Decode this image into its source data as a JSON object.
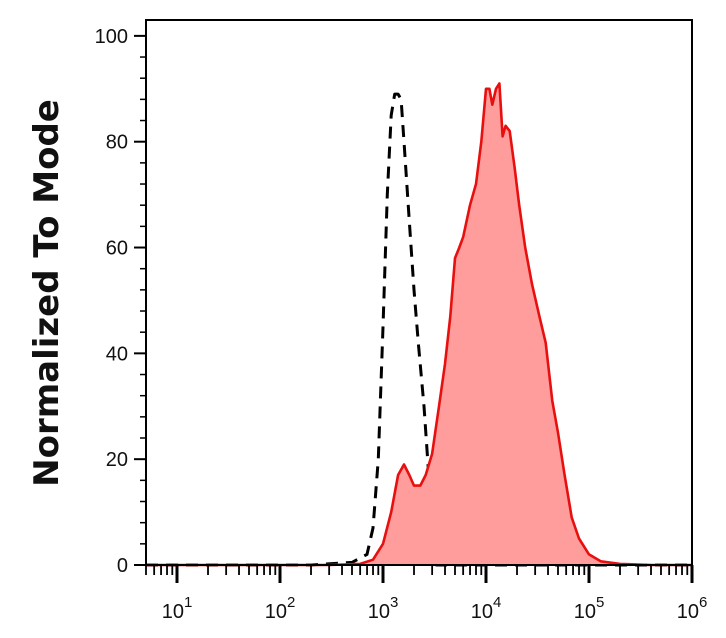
{
  "chart_data": {
    "type": "area",
    "title": "",
    "xlabel": "",
    "ylabel": "Normalized To Mode",
    "x_scale": "log",
    "xlim": [
      5,
      1000000
    ],
    "ylim": [
      0,
      103
    ],
    "y_ticks": [
      0,
      20,
      40,
      60,
      80,
      100
    ],
    "y_tick_labels": [
      "0",
      "20",
      "40",
      "60",
      "80",
      "100"
    ],
    "x_ticks": [
      {
        "value": 10,
        "base": "10",
        "exp": "1"
      },
      {
        "value": 100,
        "base": "10",
        "exp": "2"
      },
      {
        "value": 1000,
        "base": "10",
        "exp": "3"
      },
      {
        "value": 10000,
        "base": "10",
        "exp": "4"
      },
      {
        "value": 100000,
        "base": "10",
        "exp": "5"
      },
      {
        "value": 1000000,
        "base": "10",
        "exp": "6"
      }
    ],
    "grid": false,
    "series": [
      {
        "style": "dashed",
        "color": "#000000",
        "points": [
          [
            5,
            0
          ],
          [
            200,
            0
          ],
          [
            500,
            0.5
          ],
          [
            700,
            2
          ],
          [
            800,
            7
          ],
          [
            900,
            20
          ],
          [
            1000,
            45
          ],
          [
            1100,
            70
          ],
          [
            1200,
            85
          ],
          [
            1300,
            89
          ],
          [
            1400,
            89
          ],
          [
            1500,
            88
          ],
          [
            1600,
            80
          ],
          [
            1800,
            65
          ],
          [
            2000,
            52
          ],
          [
            2200,
            42
          ],
          [
            2500,
            30
          ],
          [
            2800,
            16
          ],
          [
            3000,
            5
          ],
          [
            3300,
            0
          ],
          [
            1000000,
            0
          ]
        ]
      },
      {
        "style": "filled",
        "color": "#e8100f",
        "fill": "#ff9d9d",
        "points": [
          [
            5,
            0
          ],
          [
            300,
            0
          ],
          [
            600,
            0.2
          ],
          [
            800,
            1
          ],
          [
            1000,
            4
          ],
          [
            1200,
            10
          ],
          [
            1400,
            17
          ],
          [
            1600,
            19
          ],
          [
            1800,
            17
          ],
          [
            2000,
            15
          ],
          [
            2300,
            15
          ],
          [
            2600,
            17
          ],
          [
            3000,
            21
          ],
          [
            3500,
            30
          ],
          [
            4000,
            38
          ],
          [
            4500,
            47
          ],
          [
            5000,
            58
          ],
          [
            5500,
            60
          ],
          [
            6000,
            62
          ],
          [
            7000,
            68
          ],
          [
            8000,
            72
          ],
          [
            9000,
            80
          ],
          [
            10000,
            90
          ],
          [
            10800,
            90
          ],
          [
            11500,
            87
          ],
          [
            12500,
            90
          ],
          [
            13500,
            91
          ],
          [
            14500,
            81
          ],
          [
            15500,
            83
          ],
          [
            17000,
            82
          ],
          [
            19000,
            75
          ],
          [
            21000,
            68
          ],
          [
            24000,
            60
          ],
          [
            28000,
            53
          ],
          [
            33000,
            47
          ],
          [
            38000,
            42
          ],
          [
            44000,
            31
          ],
          [
            50000,
            25
          ],
          [
            58000,
            17
          ],
          [
            68000,
            9
          ],
          [
            80000,
            5
          ],
          [
            100000,
            2
          ],
          [
            130000,
            0.7
          ],
          [
            200000,
            0.2
          ],
          [
            400000,
            0
          ],
          [
            1000000,
            0
          ]
        ]
      }
    ]
  }
}
